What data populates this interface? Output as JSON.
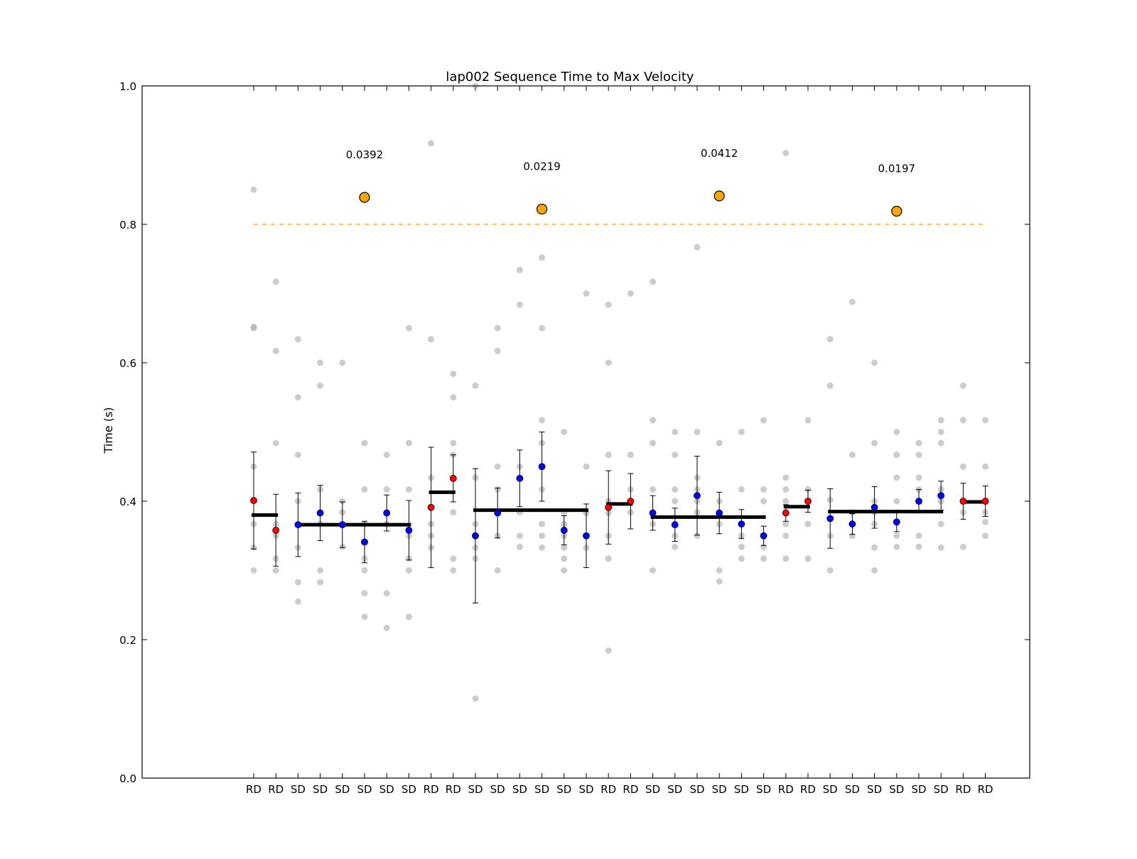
{
  "chart_data": {
    "type": "scatter",
    "title": "lap002 Sequence Time to Max Velocity",
    "ylabel": "Time (s)",
    "xlabel": "",
    "ylim": [
      0.0,
      1.0
    ],
    "yticks": [
      "0.0",
      "0.2",
      "0.4",
      "0.6",
      "0.8",
      "1.0"
    ],
    "threshold": 0.8,
    "colors": {
      "RD": "#ff0000",
      "SD": "#0000ff",
      "threshold": "#ffa500",
      "group_mean": "#000000",
      "raw": "#aaaaaa"
    },
    "categories": [
      "RD",
      "RD",
      "SD",
      "SD",
      "SD",
      "SD",
      "SD",
      "SD",
      "RD",
      "RD",
      "SD",
      "SD",
      "SD",
      "SD",
      "SD",
      "SD",
      "RD",
      "RD",
      "SD",
      "SD",
      "SD",
      "SD",
      "SD",
      "SD",
      "RD",
      "RD",
      "SD",
      "SD",
      "SD",
      "SD",
      "SD",
      "SD",
      "RD",
      "RD"
    ],
    "means": [
      0.401,
      0.358,
      0.366,
      0.383,
      0.366,
      0.341,
      0.383,
      0.358,
      0.391,
      0.433,
      0.35,
      0.383,
      0.433,
      0.45,
      0.358,
      0.35,
      0.391,
      0.4,
      0.383,
      0.366,
      0.408,
      0.383,
      0.367,
      0.35,
      0.383,
      0.4,
      0.375,
      0.367,
      0.391,
      0.37,
      0.4,
      0.408,
      0.4,
      0.4
    ],
    "errors": [
      0.07,
      0.052,
      0.046,
      0.04,
      0.033,
      0.03,
      0.026,
      0.043,
      0.087,
      0.034,
      0.097,
      0.036,
      0.041,
      0.05,
      0.021,
      0.046,
      0.053,
      0.04,
      0.025,
      0.024,
      0.057,
      0.03,
      0.021,
      0.014,
      0.012,
      0.016,
      0.043,
      0.015,
      0.03,
      0.014,
      0.017,
      0.021,
      0.026,
      0.022
    ],
    "group_means": [
      {
        "from": 0,
        "to": 1,
        "value": 0.38
      },
      {
        "from": 2,
        "to": 7,
        "value": 0.366
      },
      {
        "from": 8,
        "to": 9,
        "value": 0.413
      },
      {
        "from": 10,
        "to": 15,
        "value": 0.387
      },
      {
        "from": 16,
        "to": 17,
        "value": 0.396
      },
      {
        "from": 18,
        "to": 23,
        "value": 0.377
      },
      {
        "from": 24,
        "to": 25,
        "value": 0.392
      },
      {
        "from": 26,
        "to": 31,
        "value": 0.385
      },
      {
        "from": 32,
        "to": 33,
        "value": 0.399
      }
    ],
    "highlights": [
      {
        "x": 5,
        "y": 0.839,
        "label": "0.0392"
      },
      {
        "x": 13,
        "y": 0.822,
        "label": "0.0219"
      },
      {
        "x": 21,
        "y": 0.841,
        "label": "0.0412"
      },
      {
        "x": 29,
        "y": 0.819,
        "label": "0.0197"
      }
    ],
    "raw_points": [
      [
        0.85,
        0.652,
        0.65,
        0.45,
        0.367,
        0.333,
        0.3
      ],
      [
        0.717,
        0.617,
        0.484,
        0.367,
        0.35,
        0.317,
        0.3
      ],
      [
        0.634,
        0.55,
        0.467,
        0.4,
        0.333,
        0.283,
        0.255
      ],
      [
        0.6,
        0.567,
        0.417,
        0.367,
        0.3,
        0.283
      ],
      [
        0.6,
        0.4,
        0.384,
        0.334
      ],
      [
        0.484,
        0.417,
        0.367,
        0.317,
        0.3,
        0.267,
        0.233
      ],
      [
        0.467,
        0.417,
        0.367,
        0.267,
        0.217
      ],
      [
        0.65,
        0.484,
        0.417,
        0.35,
        0.317,
        0.3,
        0.233
      ],
      [
        0.917,
        0.634,
        0.434,
        0.367,
        0.35,
        0.333
      ],
      [
        0.584,
        0.55,
        0.484,
        0.467,
        0.384,
        0.317,
        0.3
      ],
      [
        1.0,
        0.567,
        0.434,
        0.367,
        0.333,
        0.317,
        0.115
      ],
      [
        0.65,
        0.617,
        0.45,
        0.417,
        0.35,
        0.3
      ],
      [
        0.734,
        0.684,
        0.45,
        0.384,
        0.35,
        0.334
      ],
      [
        0.752,
        0.65,
        0.517,
        0.484,
        0.417,
        0.367,
        0.35,
        0.333
      ],
      [
        0.5,
        0.384,
        0.367,
        0.35,
        0.333,
        0.317,
        0.3
      ],
      [
        0.7,
        0.45,
        0.383,
        0.333
      ],
      [
        0.684,
        0.6,
        0.467,
        0.4,
        0.383,
        0.35,
        0.317,
        0.184
      ],
      [
        0.7,
        0.467,
        0.417,
        0.384
      ],
      [
        0.717,
        0.517,
        0.484,
        0.417,
        0.367,
        0.3
      ],
      [
        0.5,
        0.467,
        0.417,
        0.4,
        0.35,
        0.334
      ],
      [
        0.767,
        0.5,
        0.434,
        0.417,
        0.4,
        0.384,
        0.35
      ],
      [
        0.484,
        0.4,
        0.367,
        0.3,
        0.284
      ],
      [
        0.5,
        0.417,
        0.35,
        0.334,
        0.317
      ],
      [
        0.517,
        0.417,
        0.4,
        0.35,
        0.334,
        0.317
      ],
      [
        0.903,
        0.434,
        0.417,
        0.4,
        0.367,
        0.35,
        0.317
      ],
      [
        0.517,
        0.417,
        0.367,
        0.317
      ],
      [
        0.634,
        0.567,
        0.402,
        0.35,
        0.3
      ],
      [
        0.688,
        0.467,
        0.384,
        0.35
      ],
      [
        0.6,
        0.484,
        0.4,
        0.384,
        0.367,
        0.333,
        0.3
      ],
      [
        0.5,
        0.467,
        0.434,
        0.4,
        0.35,
        0.334
      ],
      [
        0.484,
        0.467,
        0.434,
        0.417,
        0.35,
        0.334
      ],
      [
        0.517,
        0.5,
        0.484,
        0.417,
        0.4,
        0.367,
        0.333
      ],
      [
        0.567,
        0.517,
        0.45,
        0.384,
        0.334
      ],
      [
        0.517,
        0.45,
        0.384,
        0.37,
        0.35
      ]
    ]
  }
}
